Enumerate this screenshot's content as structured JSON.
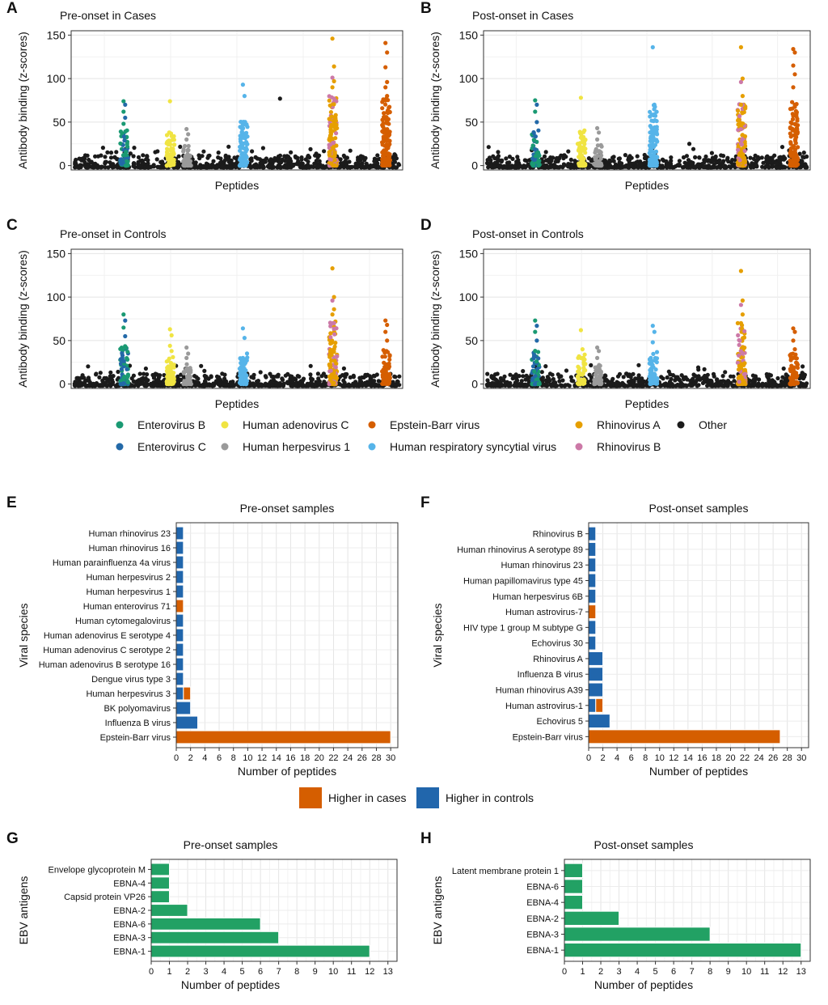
{
  "colors": {
    "enterovirus_b": "#1a9a73",
    "enterovirus_c": "#2369a8",
    "adenovirus_c": "#f0e442",
    "herpes1": "#9a9a9a",
    "ebv": "#d55e00",
    "rsv": "#56b4e9",
    "rhino_a": "#e69f00",
    "rhino_b": "#cc79a7",
    "other": "#1b1b1b",
    "higher_cases": "#d55e00",
    "higher_controls": "#2166ac",
    "ebv_antigen_bar": "#22a164"
  },
  "manhattan_legend": {
    "items": [
      {
        "label": "Enterovirus B",
        "color_key": "enterovirus_b"
      },
      {
        "label": "Enterovirus C",
        "color_key": "enterovirus_c"
      },
      {
        "label": "Human adenovirus C",
        "color_key": "adenovirus_c"
      },
      {
        "label": "Human herpesvirus 1",
        "color_key": "herpes1"
      },
      {
        "label": "Epstein-Barr virus",
        "color_key": "ebv"
      },
      {
        "label": "Human respiratory syncytial virus",
        "color_key": "rsv"
      },
      {
        "label": "Rhinovirus A",
        "color_key": "rhino_a"
      },
      {
        "label": "Rhinovirus B",
        "color_key": "rhino_b"
      },
      {
        "label": "Other",
        "color_key": "other"
      }
    ]
  },
  "bar_legend": {
    "cases": "Higher in cases",
    "controls": "Higher in controls"
  },
  "chart_data": [
    {
      "panel": "A",
      "type": "scatter",
      "title": "Pre-onset in Cases",
      "xlabel": "Peptides",
      "ylabel": "Antibody binding (z-scores)",
      "ylim": [
        -5,
        155
      ],
      "yticks": [
        0,
        50,
        100,
        150
      ],
      "grid": true,
      "series": [
        {
          "name": "Enterovirus B",
          "x_center": 0.16,
          "max": 74,
          "peaks": [
            74,
            70,
            62,
            55,
            48
          ]
        },
        {
          "name": "Human adenovirus C",
          "x_center": 0.3,
          "max": 74,
          "peaks": [
            74,
            34,
            28
          ]
        },
        {
          "name": "Human herpesvirus 1",
          "x_center": 0.35,
          "max": 42,
          "peaks": [
            42,
            36,
            30
          ]
        },
        {
          "name": "Human respiratory syncytial virus",
          "x_center": 0.52,
          "max": 93,
          "peaks": [
            93,
            80,
            47
          ]
        },
        {
          "name": "Other",
          "x_center": 0.63,
          "max": 77,
          "peaks": [
            77
          ]
        },
        {
          "name": "Rhinovirus A",
          "x_center": 0.79,
          "max": 146,
          "peaks": [
            146,
            114,
            101,
            97,
            90,
            77
          ]
        },
        {
          "name": "Epstein-Barr virus",
          "x_center": 0.95,
          "max": 141,
          "peaks": [
            141,
            130,
            113,
            96,
            90,
            80
          ]
        }
      ]
    },
    {
      "panel": "B",
      "type": "scatter",
      "title": "Post-onset in Cases",
      "xlabel": "Peptides",
      "ylabel": "Antibody binding (z-scores)",
      "ylim": [
        -5,
        155
      ],
      "yticks": [
        0,
        50,
        100,
        150
      ],
      "grid": true,
      "series": [
        {
          "name": "Enterovirus B",
          "x_center": 0.16,
          "max": 75,
          "peaks": [
            75,
            70,
            62,
            50
          ]
        },
        {
          "name": "Human adenovirus C",
          "x_center": 0.3,
          "max": 78,
          "peaks": [
            78,
            30
          ]
        },
        {
          "name": "Human herpesvirus 1",
          "x_center": 0.35,
          "max": 43,
          "peaks": [
            43,
            38,
            30
          ]
        },
        {
          "name": "Human respiratory syncytial virus",
          "x_center": 0.52,
          "max": 136,
          "peaks": [
            136,
            70,
            35
          ]
        },
        {
          "name": "Other",
          "x_center": 0.63,
          "max": 25,
          "peaks": [
            25
          ]
        },
        {
          "name": "Rhinovirus A",
          "x_center": 0.79,
          "max": 136,
          "peaks": [
            136,
            100,
            96,
            80,
            70
          ]
        },
        {
          "name": "Epstein-Barr virus",
          "x_center": 0.95,
          "max": 134,
          "peaks": [
            134,
            130,
            115,
            105,
            90,
            70
          ]
        }
      ]
    },
    {
      "panel": "C",
      "type": "scatter",
      "title": "Pre-onset in Controls",
      "xlabel": "Peptides",
      "ylabel": "Antibody binding (z-scores)",
      "ylim": [
        -5,
        155
      ],
      "yticks": [
        0,
        50,
        100,
        150
      ],
      "grid": true,
      "series": [
        {
          "name": "Enterovirus B",
          "x_center": 0.16,
          "max": 80,
          "peaks": [
            80,
            73,
            65,
            55
          ]
        },
        {
          "name": "Human adenovirus C",
          "x_center": 0.3,
          "max": 63,
          "peaks": [
            63,
            56,
            44,
            38
          ]
        },
        {
          "name": "Human herpesvirus 1",
          "x_center": 0.35,
          "max": 42,
          "peaks": [
            42,
            35,
            30
          ]
        },
        {
          "name": "Human respiratory syncytial virus",
          "x_center": 0.52,
          "max": 64,
          "peaks": [
            64,
            53,
            30
          ]
        },
        {
          "name": "Rhinovirus A",
          "x_center": 0.79,
          "max": 133,
          "peaks": [
            133,
            100,
            96,
            86,
            80,
            70
          ]
        },
        {
          "name": "Epstein-Barr virus",
          "x_center": 0.95,
          "max": 73,
          "peaks": [
            73,
            68,
            60,
            50
          ]
        }
      ]
    },
    {
      "panel": "D",
      "type": "scatter",
      "title": "Post-onset in Controls",
      "xlabel": "Peptides",
      "ylabel": "Antibody binding (z-scores)",
      "ylim": [
        -5,
        155
      ],
      "yticks": [
        0,
        50,
        100,
        150
      ],
      "grid": true,
      "series": [
        {
          "name": "Enterovirus B",
          "x_center": 0.16,
          "max": 73,
          "peaks": [
            73,
            67,
            60,
            50
          ]
        },
        {
          "name": "Human adenovirus C",
          "x_center": 0.3,
          "max": 62,
          "peaks": [
            62,
            40,
            30
          ]
        },
        {
          "name": "Human herpesvirus 1",
          "x_center": 0.35,
          "max": 42,
          "peaks": [
            42,
            38,
            30
          ]
        },
        {
          "name": "Human respiratory syncytial virus",
          "x_center": 0.52,
          "max": 67,
          "peaks": [
            67,
            60,
            48
          ]
        },
        {
          "name": "Rhinovirus A",
          "x_center": 0.79,
          "max": 130,
          "peaks": [
            130,
            96,
            91,
            80,
            70
          ]
        },
        {
          "name": "Epstein-Barr virus",
          "x_center": 0.95,
          "max": 64,
          "peaks": [
            64,
            60,
            50,
            40
          ]
        }
      ]
    },
    {
      "panel": "E",
      "type": "bar",
      "title": "Pre-onset samples",
      "xlabel": "Number of peptides",
      "ylabel": "Viral species",
      "xlim": [
        0,
        31
      ],
      "xticks": [
        0,
        2,
        4,
        6,
        8,
        10,
        12,
        14,
        16,
        18,
        20,
        22,
        24,
        26,
        28,
        30
      ],
      "categories": [
        "Human rhinovirus 23",
        "Human rhinovirus 16",
        "Human parainfluenza 4a virus",
        "Human herpesvirus 2",
        "Human herpesvirus 1",
        "Human enterovirus 71",
        "Human cytomegalovirus",
        "Human adenovirus E serotype 4",
        "Human adenovirus C serotype 2",
        "Human adenovirus B serotype 16",
        "Dengue virus type 3",
        "Human herpesvirus 3",
        "BK polyomavirus",
        "Influenza B virus",
        "Epstein-Barr virus"
      ],
      "series": [
        {
          "name": "Higher in controls",
          "values": [
            1,
            1,
            1,
            1,
            1,
            0,
            1,
            1,
            1,
            1,
            1,
            1,
            2,
            3,
            0
          ]
        },
        {
          "name": "Higher in cases",
          "values": [
            0,
            0,
            0,
            0,
            0,
            1,
            0,
            0,
            0,
            0,
            0,
            1,
            0,
            0,
            30
          ]
        }
      ]
    },
    {
      "panel": "F",
      "type": "bar",
      "title": "Post-onset samples",
      "xlabel": "Number of peptides",
      "ylabel": "Viral species",
      "xlim": [
        0,
        31
      ],
      "xticks": [
        0,
        2,
        4,
        6,
        8,
        10,
        12,
        14,
        16,
        18,
        20,
        22,
        24,
        26,
        28,
        30
      ],
      "categories": [
        "Rhinovirus B",
        "Human rhinovirus A serotype 89",
        "Human rhinovirus 23",
        "Human papillomavirus type 45",
        "Human herpesvirus 6B",
        "Human astrovirus-7",
        "HIV type 1 group M subtype G",
        "Echovirus 30",
        "Rhinovirus A",
        "Influenza B virus",
        "Human rhinovirus A39",
        "Human astrovirus-1",
        "Echovirus 5",
        "Epstein-Barr virus"
      ],
      "series": [
        {
          "name": "Higher in controls",
          "values": [
            1,
            1,
            1,
            1,
            1,
            0,
            1,
            1,
            2,
            2,
            2,
            1,
            3,
            0
          ]
        },
        {
          "name": "Higher in cases",
          "values": [
            0,
            0,
            0,
            0,
            0,
            1,
            0,
            0,
            0,
            0,
            0,
            1,
            0,
            27
          ]
        }
      ]
    },
    {
      "panel": "G",
      "type": "bar",
      "title": "Pre-onset samples",
      "xlabel": "Number of peptides",
      "ylabel": "EBV antigens",
      "xlim": [
        0,
        13.5
      ],
      "xticks": [
        0,
        1,
        2,
        3,
        4,
        5,
        6,
        7,
        8,
        9,
        10,
        11,
        12,
        13
      ],
      "categories": [
        "Envelope glycoprotein M",
        "EBNA-4",
        "Capsid protein VP26",
        "EBNA-2",
        "EBNA-6",
        "EBNA-3",
        "EBNA-1"
      ],
      "values": [
        1,
        1,
        1,
        2,
        6,
        7,
        12
      ]
    },
    {
      "panel": "H",
      "type": "bar",
      "title": "Post-onset samples",
      "xlabel": "Number of peptides",
      "ylabel": "EBV antigens",
      "xlim": [
        0,
        13.5
      ],
      "xticks": [
        0,
        1,
        2,
        3,
        4,
        5,
        6,
        7,
        8,
        9,
        10,
        11,
        12,
        13
      ],
      "categories": [
        "Latent membrane protein 1",
        "EBNA-6",
        "EBNA-4",
        "EBNA-2",
        "EBNA-3",
        "EBNA-1"
      ],
      "values": [
        1,
        1,
        1,
        3,
        8,
        13
      ]
    }
  ]
}
